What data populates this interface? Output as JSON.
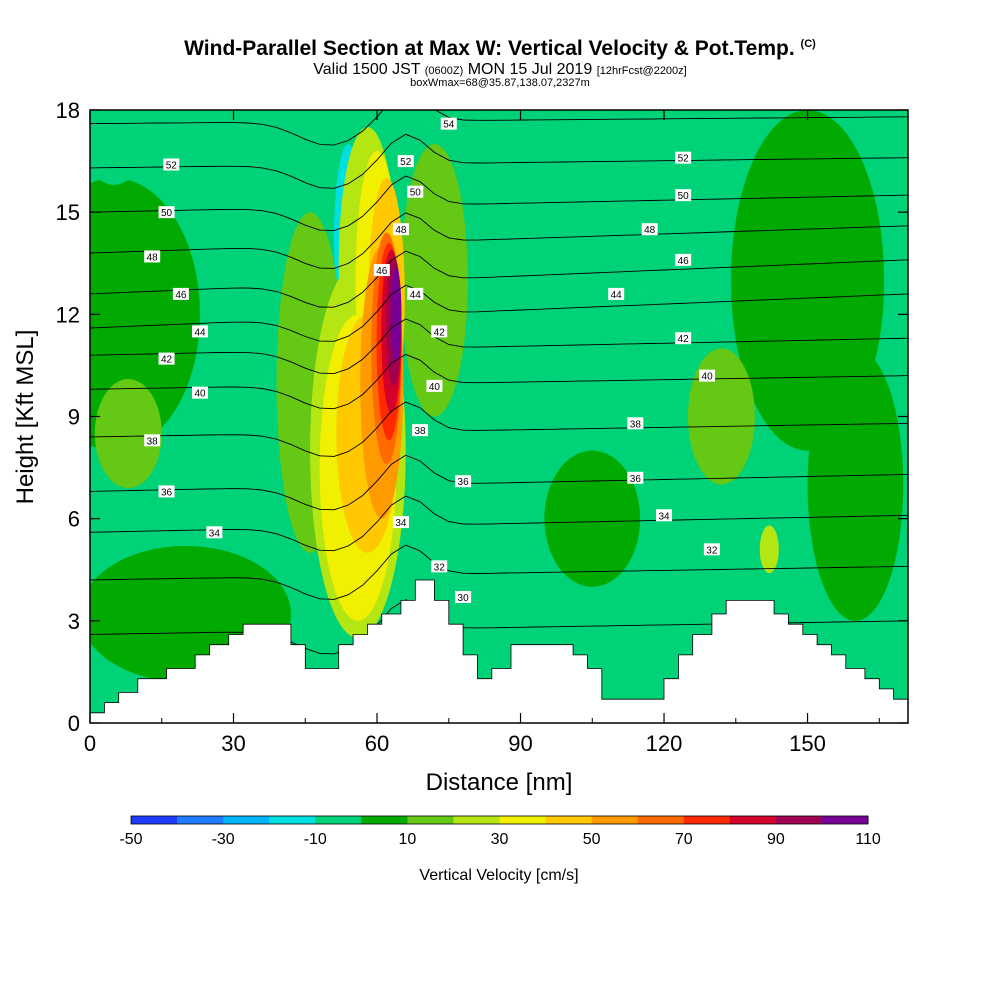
{
  "header": {
    "title": "Wind-Parallel Section at Max W: Vertical Velocity & Pot.Temp.",
    "copyright": "(C)",
    "valid_prefix": "Valid 1500 JST",
    "valid_z": "(0600Z)",
    "valid_day": "MON 15 Jul 2019",
    "forecast": "[12hrFcst@2200z]",
    "box_info": "boxWmax=68@35.87,138.07,2327m"
  },
  "chart_data": {
    "type": "heatmap",
    "xlabel": "Distance [nm]",
    "ylabel": "Height [Kft MSL]",
    "xlim": [
      0,
      171
    ],
    "ylim": [
      0,
      18
    ],
    "x_ticks": [
      0,
      30,
      60,
      90,
      120,
      150
    ],
    "y_ticks": [
      0,
      3,
      6,
      9,
      12,
      15,
      18
    ],
    "colorbar": {
      "label": "Vertical Velocity [cm/s]",
      "tick_labels": [
        "-50",
        "-30",
        "-10",
        "10",
        "30",
        "50",
        "70",
        "90",
        "110"
      ],
      "levels": [
        -50,
        -40,
        -30,
        -20,
        -10,
        0,
        10,
        20,
        30,
        40,
        50,
        60,
        70,
        80,
        90,
        100,
        110
      ],
      "colors": [
        "#1e3cff",
        "#1f7bff",
        "#00b4ff",
        "#00e0e0",
        "#00d278",
        "#00aa00",
        "#64c814",
        "#b4e614",
        "#f0f000",
        "#ffc800",
        "#ff9a00",
        "#ff6a00",
        "#ff2a00",
        "#d2002a",
        "#a00050",
        "#780096"
      ]
    },
    "terrain": [
      [
        0,
        0.3
      ],
      [
        3,
        0.3
      ],
      [
        3,
        0.6
      ],
      [
        6,
        0.6
      ],
      [
        6,
        0.9
      ],
      [
        10,
        0.9
      ],
      [
        10,
        1.3
      ],
      [
        16,
        1.3
      ],
      [
        16,
        1.6
      ],
      [
        22,
        1.6
      ],
      [
        22,
        2.0
      ],
      [
        25,
        2.0
      ],
      [
        25,
        2.3
      ],
      [
        29,
        2.3
      ],
      [
        29,
        2.6
      ],
      [
        32,
        2.6
      ],
      [
        32,
        2.9
      ],
      [
        42,
        2.9
      ],
      [
        42,
        2.3
      ],
      [
        45,
        2.3
      ],
      [
        45,
        1.6
      ],
      [
        52,
        1.6
      ],
      [
        52,
        2.3
      ],
      [
        55,
        2.3
      ],
      [
        55,
        2.6
      ],
      [
        58,
        2.6
      ],
      [
        58,
        2.9
      ],
      [
        61,
        2.9
      ],
      [
        61,
        3.2
      ],
      [
        65,
        3.2
      ],
      [
        65,
        3.6
      ],
      [
        68,
        3.6
      ],
      [
        68,
        4.2
      ],
      [
        72,
        4.2
      ],
      [
        72,
        3.6
      ],
      [
        75,
        3.6
      ],
      [
        75,
        2.9
      ],
      [
        78,
        2.9
      ],
      [
        78,
        2.0
      ],
      [
        81,
        2.0
      ],
      [
        81,
        1.3
      ],
      [
        84,
        1.3
      ],
      [
        84,
        1.6
      ],
      [
        88,
        1.6
      ],
      [
        88,
        2.3
      ],
      [
        101,
        2.3
      ],
      [
        101,
        2.0
      ],
      [
        104,
        2.0
      ],
      [
        104,
        1.6
      ],
      [
        107,
        1.6
      ],
      [
        107,
        0.7
      ],
      [
        120,
        0.7
      ],
      [
        120,
        1.3
      ],
      [
        123,
        1.3
      ],
      [
        123,
        2.0
      ],
      [
        126,
        2.0
      ],
      [
        126,
        2.6
      ],
      [
        130,
        2.6
      ],
      [
        130,
        3.2
      ],
      [
        133,
        3.2
      ],
      [
        133,
        3.6
      ],
      [
        143,
        3.6
      ],
      [
        143,
        3.2
      ],
      [
        146,
        3.2
      ],
      [
        146,
        2.9
      ],
      [
        149,
        2.9
      ],
      [
        149,
        2.6
      ],
      [
        152,
        2.6
      ],
      [
        152,
        2.3
      ],
      [
        155,
        2.3
      ],
      [
        155,
        2.0
      ],
      [
        158,
        2.0
      ],
      [
        158,
        1.6
      ],
      [
        162,
        1.6
      ],
      [
        162,
        1.3
      ],
      [
        165,
        1.3
      ],
      [
        165,
        1.0
      ],
      [
        168,
        1.0
      ],
      [
        168,
        0.7
      ],
      [
        171,
        0.7
      ]
    ],
    "velocity_regions": [
      {
        "level": 0,
        "x": 5,
        "y": 12,
        "rx": 18,
        "ry": 4
      },
      {
        "level": 0,
        "x": 150,
        "y": 13,
        "rx": 16,
        "ry": 5
      },
      {
        "level": 0,
        "x": 105,
        "y": 6,
        "rx": 10,
        "ry": 2
      },
      {
        "level": 0,
        "x": 20,
        "y": 3.2,
        "rx": 22,
        "ry": 2
      },
      {
        "level": 0,
        "x": 160,
        "y": 7,
        "rx": 10,
        "ry": 4
      },
      {
        "level": -10,
        "x": 5,
        "y": 17,
        "rx": 6,
        "ry": 1.2
      },
      {
        "level": -10,
        "x": 35,
        "y": 7.8,
        "rx": 4,
        "ry": 1.3
      },
      {
        "level": -10,
        "x": 83,
        "y": 11.5,
        "rx": 3,
        "ry": 1.4
      },
      {
        "level": -10,
        "x": 37,
        "y": 17.5,
        "rx": 5,
        "ry": 0.8
      },
      {
        "level": -10,
        "x": 50,
        "y": 14.5,
        "rx": 4,
        "ry": 3.5
      },
      {
        "level": -20,
        "x": 54,
        "y": 14.2,
        "rx": 3,
        "ry": 2.8
      },
      {
        "level": -30,
        "x": 55,
        "y": 14,
        "rx": 1.8,
        "ry": 2.0
      },
      {
        "level": -40,
        "x": 55.5,
        "y": 14.2,
        "rx": 0.9,
        "ry": 1.0
      },
      {
        "level": 10,
        "x": 46,
        "y": 10,
        "rx": 7,
        "ry": 5
      },
      {
        "level": 10,
        "x": 72,
        "y": 13,
        "rx": 7,
        "ry": 4
      },
      {
        "level": 10,
        "x": 8,
        "y": 8.5,
        "rx": 7,
        "ry": 1.6
      },
      {
        "level": 10,
        "x": 132,
        "y": 9,
        "rx": 7,
        "ry": 2
      },
      {
        "level": 20,
        "x": 56,
        "y": 8,
        "rx": 10,
        "ry": 5.5
      },
      {
        "level": 20,
        "x": 58,
        "y": 13.5,
        "rx": 6,
        "ry": 4
      },
      {
        "level": 20,
        "x": 142,
        "y": 5.1,
        "rx": 2,
        "ry": 0.7
      },
      {
        "level": 30,
        "x": 56,
        "y": 7.5,
        "rx": 8,
        "ry": 4.5
      },
      {
        "level": 30,
        "x": 60,
        "y": 13,
        "rx": 4.5,
        "ry": 3.8
      },
      {
        "level": 40,
        "x": 58,
        "y": 8.5,
        "rx": 6.5,
        "ry": 3.5
      },
      {
        "level": 40,
        "x": 62,
        "y": 12.5,
        "rx": 3.8,
        "ry": 3.5
      },
      {
        "level": 50,
        "x": 61,
        "y": 10,
        "rx": 4.5,
        "ry": 4
      },
      {
        "level": 60,
        "x": 62,
        "y": 11,
        "rx": 3.2,
        "ry": 3.4
      },
      {
        "level": 70,
        "x": 62.5,
        "y": 11.2,
        "rx": 2.6,
        "ry": 2.9
      },
      {
        "level": 80,
        "x": 63,
        "y": 11.5,
        "rx": 2.1,
        "ry": 2.4
      },
      {
        "level": 90,
        "x": 63.5,
        "y": 11.8,
        "rx": 1.6,
        "ry": 1.9
      },
      {
        "level": 100,
        "x": 64,
        "y": 12,
        "rx": 1.1,
        "ry": 1.4
      }
    ],
    "isentropes": {
      "levels": [
        30,
        32,
        34,
        36,
        38,
        40,
        42,
        44,
        46,
        48,
        50,
        52,
        54
      ],
      "heights_left": [
        2.6,
        4.2,
        5.6,
        6.8,
        8.4,
        9.8,
        10.8,
        11.6,
        12.6,
        13.8,
        15.0,
        16.3,
        17.6
      ],
      "heights_right": [
        3.0,
        4.6,
        6.1,
        7.3,
        8.8,
        10.2,
        11.3,
        12.6,
        13.6,
        14.6,
        15.5,
        16.6,
        17.8
      ]
    },
    "contour_labels": [
      {
        "text": "52",
        "x": 17,
        "y": 16.4
      },
      {
        "text": "50",
        "x": 16,
        "y": 15.0
      },
      {
        "text": "48",
        "x": 13,
        "y": 13.7
      },
      {
        "text": "46",
        "x": 19,
        "y": 12.6
      },
      {
        "text": "44",
        "x": 23,
        "y": 11.5
      },
      {
        "text": "42",
        "x": 16,
        "y": 10.7
      },
      {
        "text": "40",
        "x": 23,
        "y": 9.7
      },
      {
        "text": "38",
        "x": 13,
        "y": 8.3
      },
      {
        "text": "36",
        "x": 16,
        "y": 6.8
      },
      {
        "text": "34",
        "x": 26,
        "y": 5.6
      },
      {
        "text": "54",
        "x": 75,
        "y": 17.6
      },
      {
        "text": "52",
        "x": 66,
        "y": 16.5
      },
      {
        "text": "50",
        "x": 68,
        "y": 15.6
      },
      {
        "text": "48",
        "x": 65,
        "y": 14.5
      },
      {
        "text": "46",
        "x": 61,
        "y": 13.3
      },
      {
        "text": "44",
        "x": 68,
        "y": 12.6
      },
      {
        "text": "42",
        "x": 73,
        "y": 11.5
      },
      {
        "text": "40",
        "x": 72,
        "y": 9.9
      },
      {
        "text": "38",
        "x": 69,
        "y": 8.6
      },
      {
        "text": "36",
        "x": 78,
        "y": 7.1
      },
      {
        "text": "34",
        "x": 65,
        "y": 5.9
      },
      {
        "text": "32",
        "x": 73,
        "y": 4.6
      },
      {
        "text": "30",
        "x": 78,
        "y": 3.7
      },
      {
        "text": "52",
        "x": 124,
        "y": 16.6
      },
      {
        "text": "50",
        "x": 124,
        "y": 15.5
      },
      {
        "text": "48",
        "x": 117,
        "y": 14.5
      },
      {
        "text": "46",
        "x": 124,
        "y": 13.6
      },
      {
        "text": "44",
        "x": 110,
        "y": 12.6
      },
      {
        "text": "42",
        "x": 124,
        "y": 11.3
      },
      {
        "text": "40",
        "x": 129,
        "y": 10.2
      },
      {
        "text": "38",
        "x": 114,
        "y": 8.8
      },
      {
        "text": "36",
        "x": 114,
        "y": 7.2
      },
      {
        "text": "34",
        "x": 120,
        "y": 6.1
      },
      {
        "text": "32",
        "x": 130,
        "y": 5.1
      }
    ]
  }
}
